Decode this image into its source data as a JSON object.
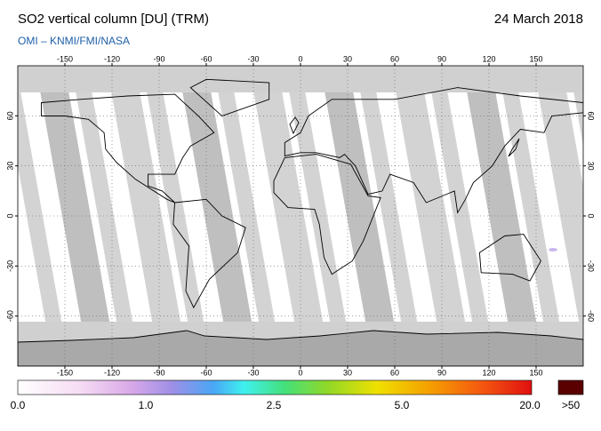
{
  "header": {
    "title": "SO2 vertical column [DU] (TRM)",
    "date": "24 March 2018",
    "source": "OMI  –  KNMI/FMI/NASA"
  },
  "map": {
    "lon_ticks": [
      -150,
      -120,
      -90,
      -60,
      -30,
      0,
      30,
      60,
      90,
      120,
      150
    ],
    "lat_ticks": [
      60,
      30,
      0,
      -30,
      -60
    ]
  },
  "colorbar": {
    "labels": [
      "0.0",
      "1.0",
      "2.5",
      "5.0",
      "20.0"
    ],
    "overflow_label": ">50"
  }
}
